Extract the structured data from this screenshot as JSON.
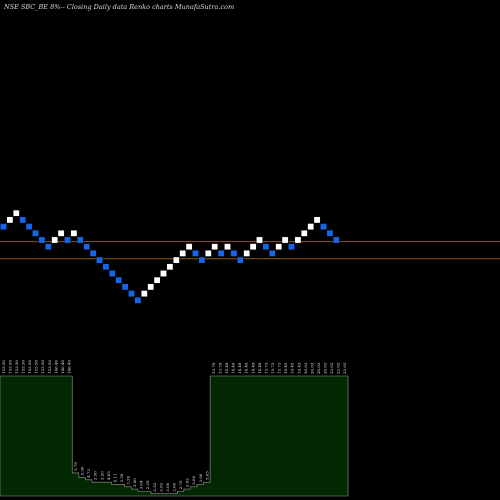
{
  "header": {
    "title": "NSE SBC_BE 8%-- Closing Daily data  Renko  charts MunafaSutra.com"
  },
  "colors": {
    "background": "#000000",
    "up_brick": "#ffffff",
    "down_brick": "#1565e6",
    "reference_line": "#8a5a10",
    "volume_area": "#012800",
    "volume_edge": "#9a9a9a"
  },
  "chart_data": {
    "type": "renko",
    "title": "NSE SBC_BE 8%-- Closing Daily data  Renko  charts MunafaSutra.com",
    "brick_size_percent": 8,
    "bricks": [
      {
        "dir": "down",
        "level": 2
      },
      {
        "dir": "up",
        "level": 3
      },
      {
        "dir": "up",
        "level": 4
      },
      {
        "dir": "down",
        "level": 3
      },
      {
        "dir": "down",
        "level": 2
      },
      {
        "dir": "down",
        "level": 1
      },
      {
        "dir": "down",
        "level": 0
      },
      {
        "dir": "down",
        "level": -1
      },
      {
        "dir": "up",
        "level": 0
      },
      {
        "dir": "up",
        "level": 1
      },
      {
        "dir": "down",
        "level": 0
      },
      {
        "dir": "up",
        "level": 1
      },
      {
        "dir": "down",
        "level": 0
      },
      {
        "dir": "down",
        "level": -1
      },
      {
        "dir": "down",
        "level": -2
      },
      {
        "dir": "down",
        "level": -3
      },
      {
        "dir": "down",
        "level": -4
      },
      {
        "dir": "down",
        "level": -5
      },
      {
        "dir": "down",
        "level": -6
      },
      {
        "dir": "down",
        "level": -7
      },
      {
        "dir": "down",
        "level": -8
      },
      {
        "dir": "down",
        "level": -9
      },
      {
        "dir": "up",
        "level": -8
      },
      {
        "dir": "up",
        "level": -7
      },
      {
        "dir": "up",
        "level": -6
      },
      {
        "dir": "up",
        "level": -5
      },
      {
        "dir": "up",
        "level": -4
      },
      {
        "dir": "up",
        "level": -3
      },
      {
        "dir": "up",
        "level": -2
      },
      {
        "dir": "up",
        "level": -1
      },
      {
        "dir": "down",
        "level": -2
      },
      {
        "dir": "down",
        "level": -3
      },
      {
        "dir": "up",
        "level": -2
      },
      {
        "dir": "up",
        "level": -1
      },
      {
        "dir": "down",
        "level": -2
      },
      {
        "dir": "up",
        "level": -1
      },
      {
        "dir": "down",
        "level": -2
      },
      {
        "dir": "down",
        "level": -3
      },
      {
        "dir": "up",
        "level": -2
      },
      {
        "dir": "up",
        "level": -1
      },
      {
        "dir": "up",
        "level": 0
      },
      {
        "dir": "down",
        "level": -1
      },
      {
        "dir": "down",
        "level": -2
      },
      {
        "dir": "up",
        "level": -1
      },
      {
        "dir": "up",
        "level": 0
      },
      {
        "dir": "down",
        "level": -1
      },
      {
        "dir": "up",
        "level": 0
      },
      {
        "dir": "up",
        "level": 1
      },
      {
        "dir": "up",
        "level": 2
      },
      {
        "dir": "up",
        "level": 3
      },
      {
        "dir": "down",
        "level": 2
      },
      {
        "dir": "down",
        "level": 1
      },
      {
        "dir": "down",
        "level": 0
      }
    ],
    "reference_levels": [
      -0.25,
      -2.8
    ],
    "volume_labels": [
      "153.50",
      "153.50",
      "153.50",
      "153.50",
      "153.50",
      "153.50",
      "153.50",
      "153.50",
      "146.40",
      "146.40",
      "146.40",
      "5.79",
      "5.30",
      "4.73",
      "3.50",
      "3.20",
      "4.65",
      "4.11",
      "3.59",
      "3.26",
      "3.00",
      "3.04",
      "2.35",
      "2.52",
      "2.62",
      "3.00",
      "3.00",
      "2.70",
      "2.62",
      "2.60",
      "3.00",
      "5.65",
      "13.79",
      "13.79",
      "14.49",
      "14.49",
      "14.49",
      "14.49",
      "14.49",
      "14.49",
      "15.73",
      "15.73",
      "15.73",
      "19.45",
      "19.45",
      "19.45",
      "20.03",
      "20.03",
      "20.03",
      "20.03",
      "22.03",
      "22.03",
      "22.03"
    ],
    "volume_heights": [
      0.52,
      0.52,
      0.52,
      0.52,
      0.52,
      0.52,
      0.52,
      0.52,
      0.52,
      0.52,
      0.52,
      0.1,
      0.08,
      0.07,
      0.06,
      0.06,
      0.06,
      0.05,
      0.05,
      0.04,
      0.03,
      0.02,
      0.02,
      0.01,
      0.01,
      0.01,
      0.01,
      0.02,
      0.03,
      0.04,
      0.05,
      0.06,
      0.52,
      0.52,
      0.52,
      0.52,
      0.52,
      0.52,
      0.52,
      0.52,
      0.52,
      0.52,
      0.52,
      0.52,
      0.52,
      0.52,
      0.52,
      0.52,
      0.52,
      0.52,
      0.52,
      0.52,
      0.52
    ]
  }
}
